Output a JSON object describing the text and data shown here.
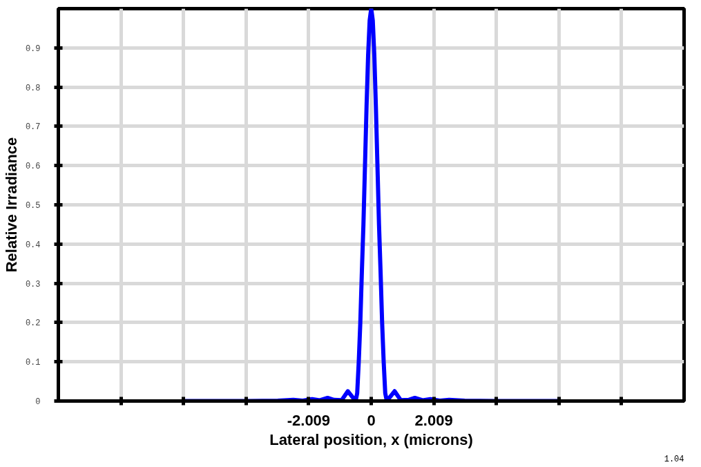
{
  "chart_data": {
    "type": "line",
    "xlabel": "Lateral position, x (microns)",
    "ylabel": "Relative Irradiance",
    "x": [
      -6,
      -5,
      -4,
      -3,
      -2.5,
      -2.2,
      -1.9,
      -1.65,
      -1.4,
      -1.2,
      -0.95,
      -0.75,
      -0.6,
      -0.5,
      -0.45,
      -0.4,
      -0.35,
      -0.3,
      -0.25,
      -0.2,
      -0.15,
      -0.1,
      -0.05,
      0,
      0.05,
      0.1,
      0.15,
      0.2,
      0.25,
      0.3,
      0.35,
      0.4,
      0.45,
      0.5,
      0.6,
      0.75,
      0.95,
      1.2,
      1.4,
      1.65,
      1.9,
      2.2,
      2.5,
      3,
      4,
      5,
      6
    ],
    "series": [
      {
        "color": "#0000ff",
        "values": [
          0,
          0,
          0,
          0.001,
          0.003,
          0.001,
          0.005,
          0.002,
          0.008,
          0.003,
          0.002,
          0.025,
          0.01,
          0,
          0.02,
          0.1,
          0.2,
          0.33,
          0.45,
          0.6,
          0.75,
          0.88,
          0.97,
          1.0,
          0.97,
          0.88,
          0.75,
          0.6,
          0.45,
          0.33,
          0.2,
          0.1,
          0.02,
          0,
          0.01,
          0.025,
          0.002,
          0.003,
          0.008,
          0.002,
          0.005,
          0.001,
          0.003,
          0.001,
          0,
          0,
          0
        ]
      }
    ],
    "xlim": [
      -10.045,
      10.045
    ],
    "ylim": [
      0,
      1
    ],
    "xticks": [
      {
        "value": -8.036,
        "label": null
      },
      {
        "value": -6.027,
        "label": null
      },
      {
        "value": -4.018,
        "label": null
      },
      -2.009,
      0,
      2.009,
      {
        "value": 4.018,
        "label": null
      },
      {
        "value": 6.027,
        "label": null
      },
      {
        "value": 8.036,
        "label": null
      }
    ],
    "annotations": [
      "1.04"
    ],
    "yticks": [
      0,
      0.1,
      0.2,
      0.3,
      0.4,
      0.5,
      0.6,
      0.7,
      0.8,
      0.9
    ],
    "grid": true,
    "marker": "none",
    "line_style": "solid"
  }
}
